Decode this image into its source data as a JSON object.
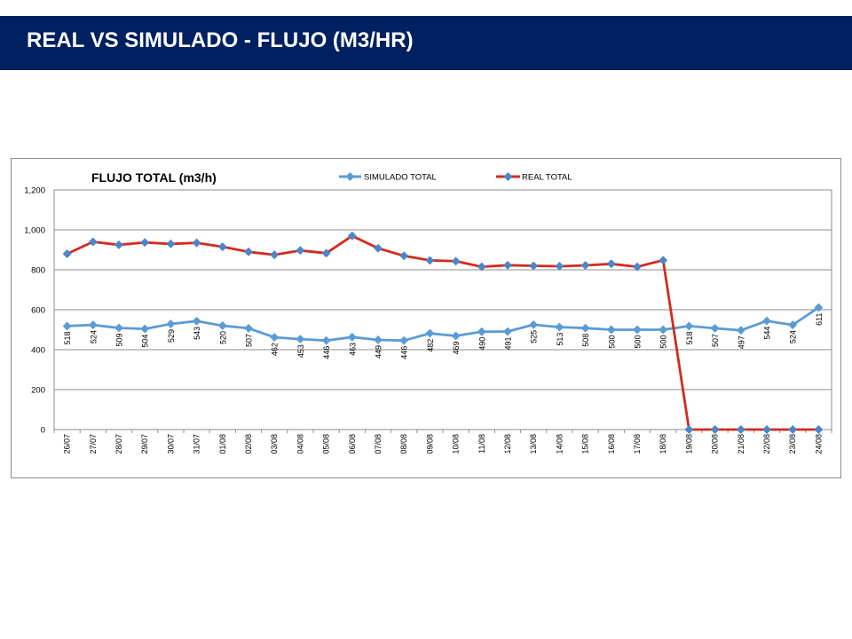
{
  "page": {
    "title": "REAL VS SIMULADO  - FLUJO (M3/HR)"
  },
  "colors": {
    "title_bar": "#002060",
    "simulado": "#5b9bd5",
    "real": "#d42a1c",
    "real_marker": "#4a86c8"
  },
  "chart_data": {
    "type": "line",
    "title": "FLUJO TOTAL (m3/h)",
    "xlabel": "",
    "ylabel": "",
    "ylim": [
      0,
      1200
    ],
    "yticks": [
      0,
      200,
      400,
      600,
      800,
      1000,
      1200
    ],
    "ytick_labels": [
      "0",
      "200",
      "400",
      "600",
      "800",
      "1,000",
      "1,200"
    ],
    "grid": true,
    "legend_position": "top",
    "categories": [
      "26/07",
      "27/07",
      "28/07",
      "29/07",
      "30/07",
      "31/07",
      "01/08",
      "02/08",
      "03/08",
      "04/08",
      "05/08",
      "06/08",
      "07/08",
      "08/08",
      "09/08",
      "10/08",
      "11/08",
      "12/08",
      "13/08",
      "14/08",
      "15/08",
      "16/08",
      "17/08",
      "18/08",
      "19/08",
      "20/08",
      "21/08",
      "22/08",
      "23/08",
      "24/08"
    ],
    "series": [
      {
        "name": "SIMULADO TOTAL",
        "values": [
          518,
          524,
          509,
          504,
          529,
          543,
          520,
          507,
          462,
          453,
          446,
          463,
          449,
          446,
          482,
          469,
          490,
          491,
          525,
          513,
          508,
          500,
          500,
          500,
          518,
          507,
          497,
          544,
          524,
          611
        ],
        "data_labels": [
          "518",
          "524",
          "509",
          "504",
          "529",
          "543",
          "520",
          "507",
          "462",
          "453",
          "446",
          "463",
          "449",
          "446",
          "482",
          "469",
          "490",
          "491",
          "525",
          "513",
          "508",
          "500",
          "500",
          "500",
          "518",
          "507",
          "497",
          "544",
          "524",
          "611"
        ]
      },
      {
        "name": "REAL TOTAL",
        "values": [
          880,
          940,
          925,
          937,
          930,
          935,
          915,
          890,
          875,
          897,
          883,
          970,
          908,
          870,
          847,
          843,
          815,
          823,
          820,
          818,
          822,
          830,
          815,
          848,
          0,
          0,
          0,
          0,
          0,
          0
        ]
      }
    ]
  }
}
